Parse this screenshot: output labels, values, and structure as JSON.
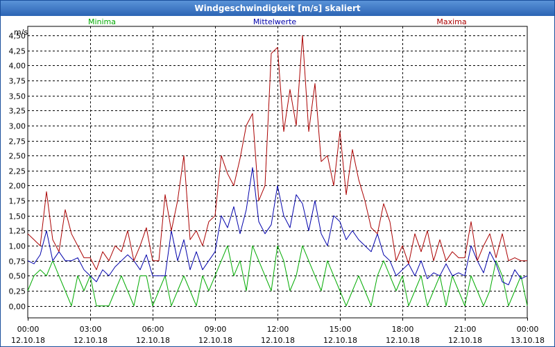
{
  "window": {
    "title": "Windgeschwindigkeit [m/s] skaliert"
  },
  "chart_data": {
    "type": "line",
    "title": "Windgeschwindigkeit [m/s] skaliert",
    "ylabel": "m/s",
    "xlabel": "",
    "ylim": [
      -0.2,
      4.65
    ],
    "xlim": [
      0,
      24
    ],
    "yticks": [
      0.0,
      0.25,
      0.5,
      0.75,
      1.0,
      1.25,
      1.5,
      1.75,
      2.0,
      2.25,
      2.5,
      2.75,
      3.0,
      3.25,
      3.5,
      3.75,
      4.0,
      4.25,
      4.5
    ],
    "ytick_labels": [
      "0,00",
      "0,25",
      "0,50",
      "0,75",
      "1,00",
      "1,25",
      "1,50",
      "1,75",
      "2,00",
      "2,25",
      "2,50",
      "2,75",
      "3,00",
      "3,25",
      "3,50",
      "3,75",
      "4,00",
      "4,25",
      "4,50"
    ],
    "xticks": [
      0,
      3,
      6,
      9,
      12,
      15,
      18,
      21,
      24
    ],
    "xtick_times": [
      "00:00",
      "03:00",
      "06:00",
      "09:00",
      "12:00",
      "15:00",
      "18:00",
      "21:00",
      "00:00"
    ],
    "xtick_dates": [
      "12.10.18",
      "12.10.18",
      "12.10.18",
      "12.10.18",
      "12.10.18",
      "12.10.18",
      "12.10.18",
      "12.10.18",
      "13.10.18"
    ],
    "grid": true,
    "legend_position": "top",
    "series": [
      {
        "name": "Minima",
        "color": "#00aa00",
        "x": [
          0,
          0.3,
          0.6,
          0.9,
          1.2,
          1.5,
          1.8,
          2.1,
          2.4,
          2.7,
          3.0,
          3.3,
          3.6,
          3.9,
          4.2,
          4.5,
          4.8,
          5.1,
          5.4,
          5.7,
          6.0,
          6.3,
          6.6,
          6.9,
          7.2,
          7.5,
          7.8,
          8.1,
          8.4,
          8.7,
          9.0,
          9.3,
          9.6,
          9.9,
          10.2,
          10.5,
          10.8,
          11.1,
          11.4,
          11.7,
          12.0,
          12.3,
          12.6,
          12.9,
          13.2,
          13.5,
          13.8,
          14.1,
          14.4,
          14.7,
          15.0,
          15.3,
          15.6,
          15.9,
          16.2,
          16.5,
          16.8,
          17.1,
          17.4,
          17.7,
          18.0,
          18.3,
          18.6,
          18.9,
          19.2,
          19.5,
          19.8,
          20.1,
          20.4,
          20.7,
          21.0,
          21.3,
          21.6,
          21.9,
          22.2,
          22.5,
          22.8,
          23.1,
          23.4,
          23.7,
          24.0
        ],
        "values": [
          0.25,
          0.5,
          0.6,
          0.5,
          0.75,
          0.5,
          0.25,
          0.0,
          0.5,
          0.25,
          0.5,
          0.0,
          0.0,
          0.0,
          0.25,
          0.5,
          0.25,
          0.0,
          0.5,
          0.5,
          0.0,
          0.25,
          0.5,
          0.0,
          0.25,
          0.5,
          0.25,
          0.0,
          0.5,
          0.25,
          0.5,
          0.75,
          1.0,
          0.5,
          0.75,
          0.25,
          1.0,
          0.75,
          0.5,
          0.25,
          1.0,
          0.75,
          0.25,
          0.5,
          1.0,
          0.75,
          0.5,
          0.25,
          0.75,
          0.5,
          0.25,
          0.0,
          0.25,
          0.5,
          0.25,
          0.0,
          0.5,
          0.75,
          0.5,
          0.25,
          0.5,
          0.0,
          0.25,
          0.5,
          0.0,
          0.25,
          0.5,
          0.0,
          0.5,
          0.25,
          0.0,
          0.5,
          0.25,
          0.0,
          0.25,
          0.75,
          0.5,
          0.0,
          0.25,
          0.5,
          0.0
        ]
      },
      {
        "name": "Mittelwerte",
        "color": "#0000aa",
        "x": [
          0,
          0.3,
          0.6,
          0.9,
          1.2,
          1.5,
          1.8,
          2.1,
          2.4,
          2.7,
          3.0,
          3.3,
          3.6,
          3.9,
          4.2,
          4.5,
          4.8,
          5.1,
          5.4,
          5.7,
          6.0,
          6.3,
          6.6,
          6.9,
          7.2,
          7.5,
          7.8,
          8.1,
          8.4,
          8.7,
          9.0,
          9.3,
          9.6,
          9.9,
          10.2,
          10.5,
          10.8,
          11.1,
          11.4,
          11.7,
          12.0,
          12.3,
          12.6,
          12.9,
          13.2,
          13.5,
          13.8,
          14.1,
          14.4,
          14.7,
          15.0,
          15.3,
          15.6,
          15.9,
          16.2,
          16.5,
          16.8,
          17.1,
          17.4,
          17.7,
          18.0,
          18.3,
          18.6,
          18.9,
          19.2,
          19.5,
          19.8,
          20.1,
          20.4,
          20.7,
          21.0,
          21.3,
          21.6,
          21.9,
          22.2,
          22.5,
          22.8,
          23.1,
          23.4,
          23.7,
          24.0
        ],
        "values": [
          0.75,
          0.7,
          0.85,
          1.25,
          0.75,
          0.9,
          0.75,
          0.75,
          0.8,
          0.6,
          0.5,
          0.4,
          0.6,
          0.5,
          0.65,
          0.75,
          0.85,
          0.75,
          0.6,
          0.85,
          0.5,
          0.5,
          0.5,
          1.25,
          0.75,
          1.1,
          0.6,
          0.9,
          0.6,
          0.75,
          0.9,
          1.5,
          1.3,
          1.65,
          1.2,
          1.6,
          2.3,
          1.4,
          1.2,
          1.35,
          2.0,
          1.5,
          1.3,
          1.85,
          1.7,
          1.25,
          1.75,
          1.2,
          1.0,
          1.5,
          1.4,
          1.1,
          1.25,
          1.1,
          1.0,
          0.9,
          1.2,
          0.85,
          0.75,
          0.5,
          0.6,
          0.7,
          0.5,
          0.75,
          0.45,
          0.55,
          0.5,
          0.7,
          0.5,
          0.55,
          0.5,
          1.0,
          0.75,
          0.55,
          0.9,
          0.7,
          0.4,
          0.35,
          0.6,
          0.45,
          0.5
        ]
      },
      {
        "name": "Maxima",
        "color": "#aa0000",
        "x": [
          0,
          0.3,
          0.6,
          0.9,
          1.2,
          1.5,
          1.8,
          2.1,
          2.4,
          2.7,
          3.0,
          3.3,
          3.6,
          3.9,
          4.2,
          4.5,
          4.8,
          5.1,
          5.4,
          5.7,
          6.0,
          6.3,
          6.6,
          6.9,
          7.2,
          7.5,
          7.8,
          8.1,
          8.4,
          8.7,
          9.0,
          9.3,
          9.6,
          9.9,
          10.2,
          10.5,
          10.8,
          11.1,
          11.4,
          11.7,
          12.0,
          12.3,
          12.6,
          12.9,
          13.2,
          13.5,
          13.8,
          14.1,
          14.4,
          14.7,
          15.0,
          15.3,
          15.6,
          15.9,
          16.2,
          16.5,
          16.8,
          17.1,
          17.4,
          17.7,
          18.0,
          18.3,
          18.6,
          18.9,
          19.2,
          19.5,
          19.8,
          20.1,
          20.4,
          20.7,
          21.0,
          21.3,
          21.6,
          21.9,
          22.2,
          22.5,
          22.8,
          23.1,
          23.4,
          23.7,
          24.0
        ],
        "values": [
          1.2,
          1.1,
          1.0,
          1.9,
          1.1,
          0.9,
          1.6,
          1.2,
          1.0,
          0.8,
          0.8,
          0.6,
          0.9,
          0.75,
          1.0,
          0.9,
          1.25,
          0.75,
          1.0,
          1.3,
          0.75,
          0.75,
          1.85,
          1.25,
          1.75,
          2.5,
          1.1,
          1.25,
          1.0,
          1.4,
          1.5,
          2.5,
          2.2,
          2.0,
          2.45,
          3.0,
          3.2,
          1.75,
          2.0,
          4.2,
          4.3,
          2.9,
          3.6,
          3.0,
          4.5,
          2.9,
          3.7,
          2.4,
          2.5,
          2.0,
          2.9,
          1.85,
          2.6,
          2.1,
          1.75,
          1.3,
          1.2,
          1.7,
          1.4,
          0.75,
          1.0,
          0.7,
          1.2,
          0.9,
          1.25,
          0.75,
          1.1,
          0.75,
          0.9,
          0.8,
          0.8,
          1.4,
          0.75,
          1.0,
          1.2,
          0.8,
          1.2,
          0.75,
          0.8,
          0.75,
          0.75
        ]
      }
    ]
  }
}
